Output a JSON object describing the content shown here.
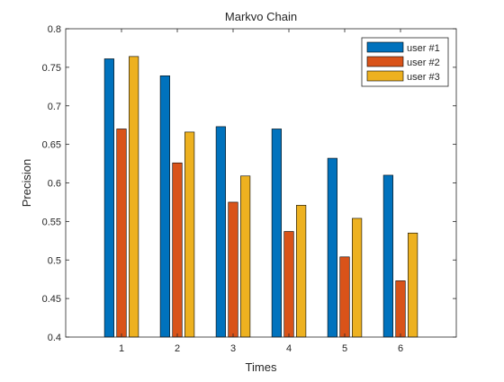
{
  "chart_data": {
    "type": "bar",
    "title": "Markvo Chain",
    "xlabel": "Times",
    "ylabel": "Precision",
    "categories": [
      "1",
      "2",
      "3",
      "4",
      "5",
      "6"
    ],
    "xlim": [
      0,
      7
    ],
    "ylim": [
      0.4,
      0.8
    ],
    "yticks": [
      0.4,
      0.45,
      0.5,
      0.55,
      0.6,
      0.65,
      0.7,
      0.75,
      0.8
    ],
    "ytick_labels": [
      "0.4",
      "0.45",
      "0.5",
      "0.55",
      "0.6",
      "0.65",
      "0.7",
      "0.75",
      "0.8"
    ],
    "grid": false,
    "legend_position": "top-right",
    "series": [
      {
        "name": "user #1",
        "color": "#0072BD",
        "values": [
          0.761,
          0.739,
          0.673,
          0.67,
          0.632,
          0.61
        ]
      },
      {
        "name": "user #2",
        "color": "#D95319",
        "values": [
          0.67,
          0.626,
          0.575,
          0.537,
          0.504,
          0.473
        ]
      },
      {
        "name": "user #3",
        "color": "#EDB120",
        "values": [
          0.764,
          0.666,
          0.609,
          0.571,
          0.554,
          0.535
        ]
      }
    ]
  }
}
